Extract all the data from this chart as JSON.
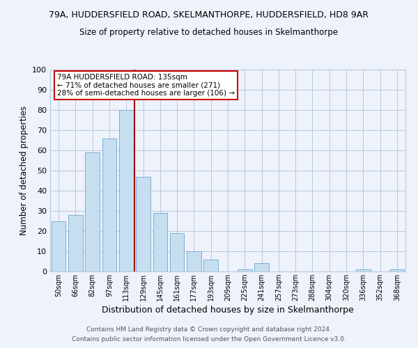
{
  "title_line1": "79A, HUDDERSFIELD ROAD, SKELMANTHORPE, HUDDERSFIELD, HD8 9AR",
  "title_line2": "Size of property relative to detached houses in Skelmanthorpe",
  "xlabel": "Distribution of detached houses by size in Skelmanthorpe",
  "ylabel": "Number of detached properties",
  "bar_labels": [
    "50sqm",
    "66sqm",
    "82sqm",
    "97sqm",
    "113sqm",
    "129sqm",
    "145sqm",
    "161sqm",
    "177sqm",
    "193sqm",
    "209sqm",
    "225sqm",
    "241sqm",
    "257sqm",
    "273sqm",
    "288sqm",
    "304sqm",
    "320sqm",
    "336sqm",
    "352sqm",
    "368sqm"
  ],
  "bar_values": [
    25,
    28,
    59,
    66,
    80,
    47,
    29,
    19,
    10,
    6,
    0,
    1,
    4,
    0,
    0,
    0,
    0,
    0,
    1,
    0,
    1
  ],
  "bar_color": "#c6dff0",
  "bar_edge_color": "#7bafd4",
  "vline_color": "#aa0000",
  "annotation_text_line1": "79A HUDDERSFIELD ROAD: 135sqm",
  "annotation_text_line2": "← 71% of detached houses are smaller (271)",
  "annotation_text_line3": "28% of semi-detached houses are larger (106) →",
  "ylim": [
    0,
    100
  ],
  "yticks": [
    0,
    10,
    20,
    30,
    40,
    50,
    60,
    70,
    80,
    90,
    100
  ],
  "footer_line1": "Contains HM Land Registry data © Crown copyright and database right 2024.",
  "footer_line2": "Contains public sector information licensed under the Open Government Licence v3.0.",
  "background_color": "#eef2fb",
  "grid_color": "#b8c8de",
  "title_fontsize": 9,
  "subtitle_fontsize": 8.5,
  "xlabel_fontsize": 9,
  "ylabel_fontsize": 8.5
}
